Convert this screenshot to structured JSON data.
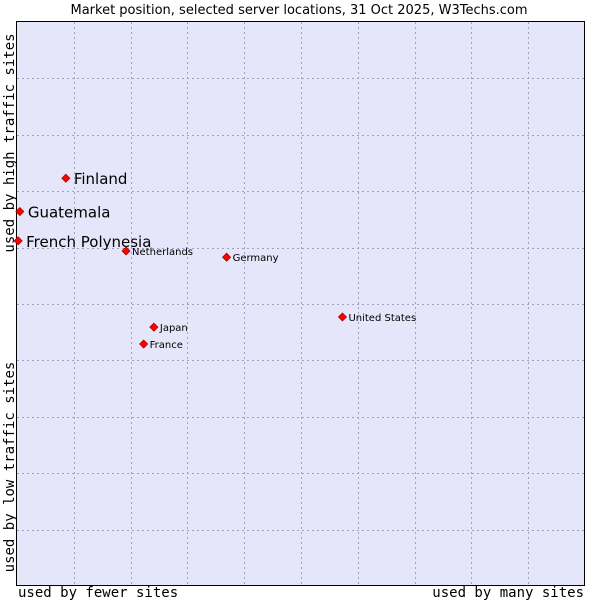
{
  "chart_data": {
    "type": "scatter",
    "title": "Market position, selected server locations, 31 Oct 2025, W3Techs.com",
    "xlabel_left": "used by fewer sites",
    "xlabel_right": "used by many sites",
    "ylabel_top": "used by high traffic sites",
    "ylabel_bottom": "used by low traffic sites",
    "xlim": [
      0,
      100
    ],
    "ylim": [
      0,
      100
    ],
    "grid": true,
    "marker_color": "#ff0000",
    "plot_background": "#e6e6fa",
    "points": [
      {
        "label": "Finland",
        "x": 8.6,
        "y": 72.3,
        "emphasized": true
      },
      {
        "label": "Guatemala",
        "x": 0.5,
        "y": 66.4,
        "emphasized": true
      },
      {
        "label": "French Polynesia",
        "x": 0.2,
        "y": 61.2,
        "emphasized": true
      },
      {
        "label": "Netherlands",
        "x": 19.2,
        "y": 59.4,
        "emphasized": false
      },
      {
        "label": "Germany",
        "x": 36.9,
        "y": 58.3,
        "emphasized": false
      },
      {
        "label": "United States",
        "x": 57.3,
        "y": 47.7,
        "emphasized": false
      },
      {
        "label": "Japan",
        "x": 24.1,
        "y": 45.9,
        "emphasized": false
      },
      {
        "label": "France",
        "x": 22.3,
        "y": 42.9,
        "emphasized": false
      }
    ]
  }
}
